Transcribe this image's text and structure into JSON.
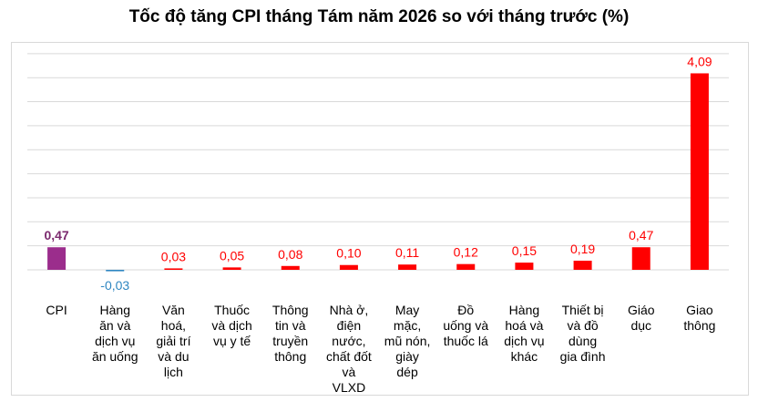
{
  "chart_data": {
    "type": "bar",
    "title": "Tốc độ tăng CPI tháng Tám năm 2026 so với tháng trước (%)",
    "xlabel": "",
    "ylabel": "",
    "grid": true,
    "legend": "none",
    "ylim": [
      -0.5,
      4.5
    ],
    "categories": [
      "CPI",
      "Hàng\năn và\ndịch vụ\năn uống",
      "Văn\nhoá,\ngiải trí\nvà du\nlịch",
      "Thuốc\nvà dịch\nvụ y tế",
      "Thông\ntin và\ntruyền\nthông",
      "Nhà ở,\nđiện\nnước,\nchất đốt\nvà\nVLXD",
      "May\nmặc,\nmũ nón,\ngiày\ndép",
      "Đồ\nuống và\nthuốc lá",
      "Hàng\nhoá và\ndịch vụ\nkhác",
      "Thiết bị\nvà đồ\ndùng\ngia đình",
      "Giáo\ndục",
      "Giao\nthông"
    ],
    "values": [
      0.47,
      -0.03,
      0.03,
      0.05,
      0.08,
      0.1,
      0.11,
      0.12,
      0.15,
      0.19,
      0.47,
      4.09
    ],
    "value_labels": [
      "0,47",
      "-0,03",
      "0,03",
      "0,05",
      "0,08",
      "0,10",
      "0,11",
      "0,12",
      "0,15",
      "0,19",
      "0,47",
      "4,09"
    ],
    "colors": [
      "#9b2d8c",
      "#2e86c1",
      "#ff0000",
      "#ff0000",
      "#ff0000",
      "#ff0000",
      "#ff0000",
      "#ff0000",
      "#ff0000",
      "#ff0000",
      "#ff0000",
      "#ff0000"
    ],
    "label_colors": [
      "#7b2a6e",
      "#2e86c1",
      "#ff0000",
      "#ff0000",
      "#ff0000",
      "#ff0000",
      "#ff0000",
      "#ff0000",
      "#ff0000",
      "#ff0000",
      "#ff0000",
      "#ff0000"
    ]
  }
}
